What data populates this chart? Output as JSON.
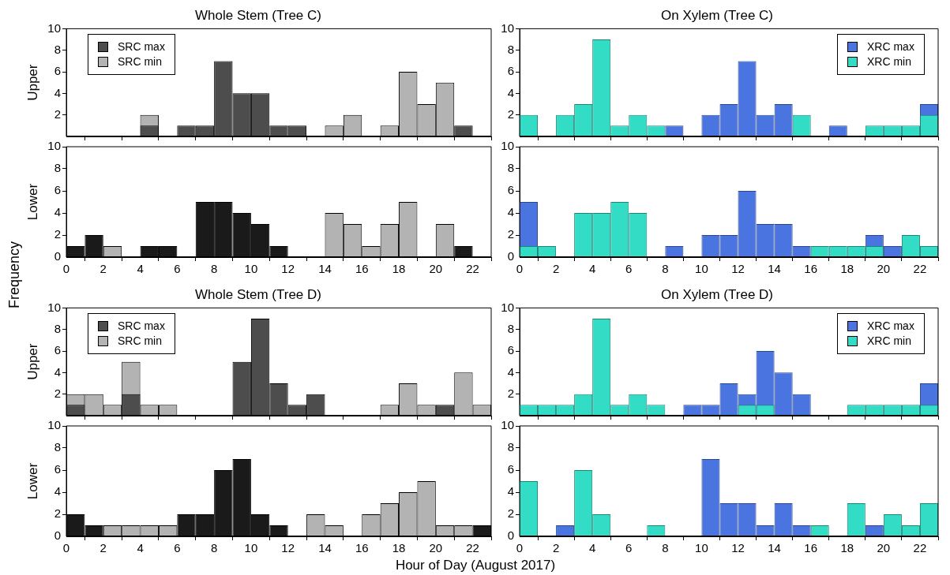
{
  "chart_data": [
    {
      "type": "histogram",
      "title": "Whole Stem (Tree C)",
      "ylabel": "Upper",
      "annotations": [
        "Frequency"
      ],
      "bins": [
        0,
        1,
        2,
        3,
        4,
        5,
        6,
        7,
        8,
        9,
        10,
        11,
        12,
        13,
        14,
        15,
        16,
        17,
        18,
        19,
        20,
        21,
        22,
        23
      ],
      "xlim": [
        0,
        23
      ],
      "xticks": [
        0,
        2,
        4,
        6,
        8,
        10,
        12,
        14,
        16,
        18,
        20,
        22
      ],
      "ylim": [
        0,
        10
      ],
      "yticks": [
        2,
        4,
        6,
        8,
        10
      ],
      "tick_labels": "y",
      "legend": "top left",
      "series": [
        {
          "name": "SRC max",
          "color": "#4d4d4d",
          "values": [
            0,
            0,
            0,
            0,
            1,
            0,
            1,
            1,
            7,
            4,
            4,
            1,
            1,
            0,
            0,
            0,
            0,
            0,
            0,
            0,
            0,
            1,
            0
          ]
        },
        {
          "name": "SRC min",
          "color": "#b3b3b3",
          "values": [
            0,
            0,
            0,
            0,
            2,
            0,
            0,
            0,
            0,
            0,
            0,
            0,
            null,
            0,
            1,
            2,
            0,
            1,
            6,
            3,
            5,
            null,
            0
          ]
        }
      ]
    },
    {
      "type": "histogram",
      "title": "On Xylem (Tree C)",
      "bins": [
        0,
        1,
        2,
        3,
        4,
        5,
        6,
        7,
        8,
        9,
        10,
        11,
        12,
        13,
        14,
        15,
        16,
        17,
        18,
        19,
        20,
        21,
        22,
        23
      ],
      "xlim": [
        0,
        23
      ],
      "xticks": [
        0,
        2,
        4,
        6,
        8,
        10,
        12,
        14,
        16,
        18,
        20,
        22
      ],
      "ylim": [
        0,
        10
      ],
      "yticks": [
        2,
        4,
        6,
        8,
        10
      ],
      "tick_labels": "y",
      "legend": "top right",
      "series": [
        {
          "name": "XRC max",
          "color": "#4a74e0",
          "values": [
            null,
            0,
            0,
            null,
            0,
            0,
            0,
            0,
            1,
            0,
            2,
            3,
            7,
            2,
            3,
            0,
            0,
            1,
            0,
            0,
            0,
            0,
            3
          ]
        },
        {
          "name": "XRC min",
          "color": "#33dcc4",
          "values": [
            2,
            0,
            2,
            3,
            9,
            1,
            2,
            1,
            0,
            0,
            0,
            0,
            0,
            0,
            0,
            2,
            0,
            0,
            0,
            1,
            1,
            1,
            2
          ]
        }
      ]
    },
    {
      "type": "histogram",
      "ylabel": "Lower",
      "bins": [
        0,
        1,
        2,
        3,
        4,
        5,
        6,
        7,
        8,
        9,
        10,
        11,
        12,
        13,
        14,
        15,
        16,
        17,
        18,
        19,
        20,
        21,
        22,
        23
      ],
      "xlim": [
        0,
        23
      ],
      "xticks": [
        0,
        2,
        4,
        6,
        8,
        10,
        12,
        14,
        16,
        18,
        20,
        22
      ],
      "ylim": [
        0,
        10
      ],
      "yticks": [
        0,
        2,
        4,
        6,
        8,
        10
      ],
      "series": [
        {
          "color": "#1a1a1a",
          "values": [
            1,
            2,
            0,
            0,
            1,
            1,
            0,
            5,
            5,
            4,
            3,
            1,
            0,
            0,
            0,
            0,
            0,
            0,
            0,
            0,
            0,
            1,
            0
          ]
        },
        {
          "color": "#b3b3b3",
          "values": [
            0,
            0,
            1,
            0,
            0,
            0,
            0,
            0,
            0,
            0,
            0,
            0,
            0,
            0,
            4,
            3,
            1,
            3,
            5,
            0,
            3,
            0,
            0
          ]
        }
      ]
    },
    {
      "type": "histogram",
      "bins": [
        0,
        1,
        2,
        3,
        4,
        5,
        6,
        7,
        8,
        9,
        10,
        11,
        12,
        13,
        14,
        15,
        16,
        17,
        18,
        19,
        20,
        21,
        22,
        23
      ],
      "xlim": [
        0,
        23
      ],
      "xticks": [
        0,
        2,
        4,
        6,
        8,
        10,
        12,
        14,
        16,
        18,
        20,
        22
      ],
      "ylim": [
        0,
        10
      ],
      "yticks": [
        0,
        2,
        4,
        6,
        8,
        10
      ],
      "series": [
        {
          "color": "#4a74e0",
          "values": [
            5,
            0,
            0,
            0,
            0,
            0,
            0,
            0,
            1,
            0,
            2,
            2,
            6,
            3,
            3,
            1,
            0,
            0,
            0,
            2,
            1,
            0,
            0
          ]
        },
        {
          "color": "#33dcc4",
          "values": [
            1,
            1,
            0,
            4,
            4,
            5,
            4,
            0,
            0,
            0,
            0,
            0,
            0,
            0,
            0,
            0,
            1,
            1,
            1,
            1,
            0,
            2,
            1
          ]
        }
      ]
    },
    {
      "type": "histogram",
      "title": "Whole Stem (Tree D)",
      "ylabel": "Upper",
      "bins": [
        0,
        1,
        2,
        3,
        4,
        5,
        6,
        7,
        8,
        9,
        10,
        11,
        12,
        13,
        14,
        15,
        16,
        17,
        18,
        19,
        20,
        21,
        22,
        23
      ],
      "xlim": [
        0,
        23
      ],
      "xticks": [
        0,
        2,
        4,
        6,
        8,
        10,
        12,
        14,
        16,
        18,
        20,
        22
      ],
      "ylim": [
        0,
        10
      ],
      "yticks": [
        2,
        4,
        6,
        8,
        10
      ],
      "tick_labels": "y",
      "legend": "top left",
      "series": [
        {
          "name": "SRC max",
          "color": "#4d4d4d",
          "values": [
            1,
            0,
            0,
            2,
            0,
            0,
            0,
            0,
            0,
            5,
            9,
            3,
            1,
            2,
            0,
            0,
            0,
            0,
            0,
            0,
            1,
            0,
            0
          ]
        },
        {
          "name": "SRC min",
          "color": "#b3b3b3",
          "values": [
            2,
            2,
            1,
            5,
            1,
            1,
            0,
            0,
            0,
            0,
            null,
            null,
            0,
            0,
            0,
            0,
            0,
            1,
            3,
            1,
            null,
            4,
            1
          ]
        }
      ]
    },
    {
      "type": "histogram",
      "title": "On Xylem (Tree D)",
      "bins": [
        0,
        1,
        2,
        3,
        4,
        5,
        6,
        7,
        8,
        9,
        10,
        11,
        12,
        13,
        14,
        15,
        16,
        17,
        18,
        19,
        20,
        21,
        22,
        23
      ],
      "xlim": [
        0,
        23
      ],
      "xticks": [
        0,
        2,
        4,
        6,
        8,
        10,
        12,
        14,
        16,
        18,
        20,
        22
      ],
      "ylim": [
        0,
        10
      ],
      "yticks": [
        2,
        4,
        6,
        8,
        10
      ],
      "tick_labels": "y",
      "legend": "top right",
      "series": [
        {
          "name": "XRC max",
          "color": "#4a74e0",
          "values": [
            0,
            0,
            0,
            null,
            0,
            0,
            0,
            0,
            0,
            1,
            1,
            3,
            2,
            6,
            4,
            2,
            0,
            0,
            0,
            0,
            0,
            0,
            3
          ]
        },
        {
          "name": "XRC min",
          "color": "#33dcc4",
          "values": [
            1,
            1,
            1,
            2,
            9,
            1,
            2,
            1,
            0,
            0,
            0,
            0,
            1,
            1,
            0,
            0,
            0,
            0,
            1,
            1,
            1,
            1,
            1
          ]
        }
      ]
    },
    {
      "type": "histogram",
      "ylabel": "Lower",
      "xlabel": "Hour of Day (August 2017)",
      "bins": [
        0,
        1,
        2,
        3,
        4,
        5,
        6,
        7,
        8,
        9,
        10,
        11,
        12,
        13,
        14,
        15,
        16,
        17,
        18,
        19,
        20,
        21,
        22,
        23
      ],
      "xlim": [
        0,
        23
      ],
      "xticks": [
        0,
        2,
        4,
        6,
        8,
        10,
        12,
        14,
        16,
        18,
        20,
        22
      ],
      "ylim": [
        0,
        10
      ],
      "yticks": [
        0,
        2,
        4,
        6,
        8,
        10
      ],
      "series": [
        {
          "color": "#1a1a1a",
          "values": [
            2,
            1,
            0,
            0,
            0,
            0,
            2,
            2,
            6,
            7,
            2,
            1,
            0,
            0,
            0,
            0,
            0,
            0,
            0,
            0,
            0,
            0,
            1
          ]
        },
        {
          "color": "#b3b3b3",
          "values": [
            null,
            0,
            1,
            1,
            1,
            1,
            0,
            0,
            0,
            0,
            0,
            0,
            0,
            2,
            1,
            0,
            2,
            3,
            4,
            5,
            1,
            1,
            0
          ]
        }
      ]
    },
    {
      "type": "histogram",
      "bins": [
        0,
        1,
        2,
        3,
        4,
        5,
        6,
        7,
        8,
        9,
        10,
        11,
        12,
        13,
        14,
        15,
        16,
        17,
        18,
        19,
        20,
        21,
        22,
        23
      ],
      "xlim": [
        0,
        23
      ],
      "xticks": [
        0,
        2,
        4,
        6,
        8,
        10,
        12,
        14,
        16,
        18,
        20,
        22
      ],
      "ylim": [
        0,
        10
      ],
      "yticks": [
        0,
        2,
        4,
        6,
        8,
        10
      ],
      "series": [
        {
          "color": "#4a74e0",
          "values": [
            null,
            0,
            1,
            null,
            0,
            0,
            0,
            0,
            0,
            0,
            7,
            3,
            3,
            1,
            3,
            1,
            0,
            0,
            0,
            1,
            0,
            0,
            0
          ]
        },
        {
          "color": "#33dcc4",
          "values": [
            5,
            0,
            0,
            6,
            2,
            0,
            0,
            1,
            0,
            0,
            0,
            0,
            0,
            0,
            0,
            0,
            1,
            0,
            3,
            0,
            2,
            1,
            3
          ]
        }
      ]
    }
  ]
}
